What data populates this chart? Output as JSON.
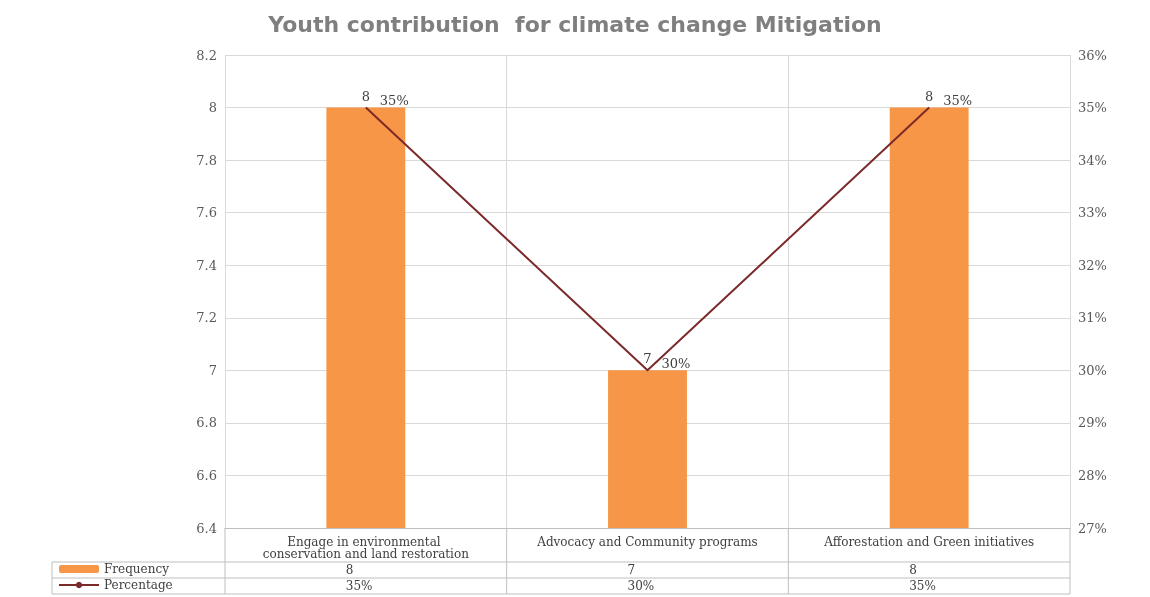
{
  "chart_data": {
    "type": "bar",
    "title": "Youth contribution  for climate change Mitigation",
    "categories": [
      "Engage in environmental conservation and land restoration",
      "Advocacy and Community programs",
      "Afforestation and Green initiatives"
    ],
    "series": [
      {
        "name": "Frequency",
        "color": "#f79646",
        "values": [
          8,
          7,
          8
        ],
        "value_labels": [
          "8",
          "7",
          "8"
        ]
      },
      {
        "name": "Percentage",
        "type": "line",
        "axis": "y2",
        "color": "#7b2a2a",
        "values": [
          35,
          30,
          35
        ],
        "value_labels": [
          "35%",
          "30%",
          "35%"
        ]
      }
    ],
    "ylim": [
      6.4,
      8.2
    ],
    "yticks": [
      6.4,
      6.6,
      6.8,
      7,
      7.2,
      7.4,
      7.6,
      7.8,
      8,
      8.2
    ],
    "y2lim": [
      27,
      36
    ],
    "y2ticks": [
      {
        "value": 27,
        "label": "27%"
      },
      {
        "value": 28,
        "label": "28%"
      },
      {
        "value": 29,
        "label": "29%"
      },
      {
        "value": 30,
        "label": "30%"
      },
      {
        "value": 31,
        "label": "31%"
      },
      {
        "value": 32,
        "label": "32%"
      },
      {
        "value": 33,
        "label": "33%"
      },
      {
        "value": 34,
        "label": "34%"
      },
      {
        "value": 35,
        "label": "35%"
      },
      {
        "value": 36,
        "label": "36%"
      }
    ],
    "grid": true,
    "legend": "bottom left",
    "marker": "none",
    "line_style": "solid"
  }
}
